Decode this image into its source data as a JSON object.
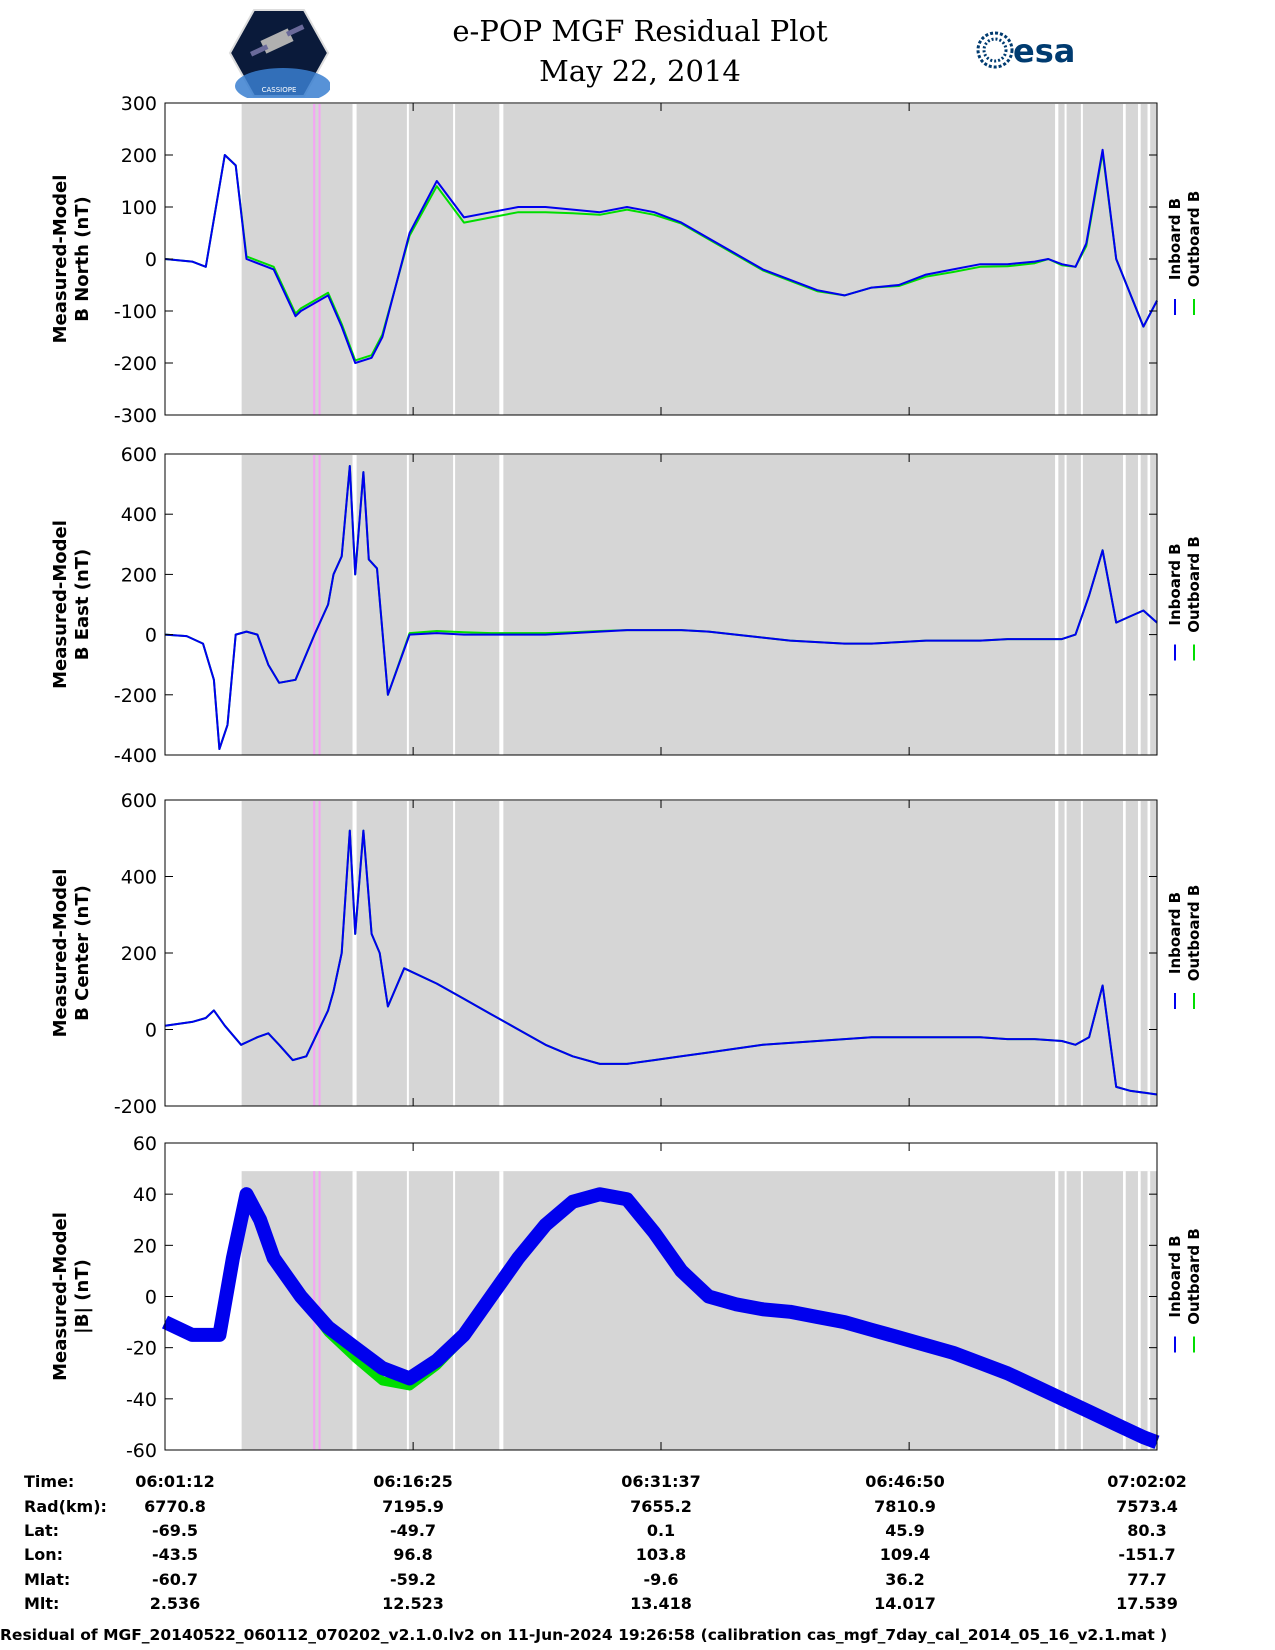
{
  "header": {
    "title": "e-POP MGF Residual Plot",
    "date": "May 22, 2014",
    "left_logo_text": "CASSIOPE",
    "right_logo_text": "esa"
  },
  "colors": {
    "inboard": "#0000ee",
    "outboard": "#00dd00",
    "shade": "#d6d6d6",
    "highlight": "#f4a6f4"
  },
  "chart_data": [
    {
      "type": "line",
      "ylabel_1": "Measured-Model",
      "ylabel_2": "B North (nT)",
      "ylim": [
        -300,
        300
      ],
      "yticks": [
        300,
        200,
        100,
        0,
        -100,
        -200,
        -300
      ],
      "legend": [
        "Inboard B",
        "Outboard B"
      ],
      "legend_placement": "right",
      "x_seconds": [
        0,
        100,
        150,
        220,
        260,
        300,
        400,
        480,
        500,
        600,
        650,
        700,
        760,
        800,
        900,
        1000,
        1100,
        1200,
        1300,
        1400,
        1500,
        1600,
        1700,
        1800,
        1900,
        2000,
        2100,
        2200,
        2300,
        2400,
        2500,
        2600,
        2700,
        2800,
        2900,
        3000,
        3100,
        3200,
        3250,
        3300,
        3350,
        3390,
        3450,
        3500,
        3600,
        3650
      ],
      "inboard": [
        0,
        -5,
        -15,
        200,
        180,
        0,
        -20,
        -110,
        -100,
        -70,
        -130,
        -200,
        -190,
        -150,
        50,
        150,
        80,
        90,
        100,
        100,
        95,
        90,
        100,
        90,
        70,
        40,
        10,
        -20,
        -40,
        -60,
        -70,
        -55,
        -50,
        -30,
        -20,
        -10,
        -10,
        -5,
        0,
        -10,
        -15,
        30,
        210,
        0,
        -130,
        -80
      ],
      "outboard": [
        0,
        -5,
        -15,
        200,
        180,
        5,
        -15,
        -105,
        -95,
        -65,
        -125,
        -195,
        -185,
        -145,
        45,
        140,
        70,
        80,
        90,
        90,
        88,
        85,
        95,
        85,
        68,
        38,
        8,
        -22,
        -42,
        -62,
        -70,
        -55,
        -52,
        -34,
        -25,
        -15,
        -14,
        -8,
        0,
        -12,
        -15,
        25,
        205,
        0,
        -130,
        -80
      ]
    },
    {
      "type": "line",
      "ylabel_1": "Measured-Model",
      "ylabel_2": "B East (nT)",
      "ylim": [
        -400,
        600
      ],
      "yticks": [
        600,
        400,
        200,
        0,
        -200,
        -400
      ],
      "legend": [
        "Inboard B",
        "Outboard B"
      ],
      "legend_placement": "right",
      "x_seconds": [
        0,
        80,
        140,
        180,
        200,
        230,
        260,
        300,
        340,
        380,
        420,
        480,
        550,
        600,
        620,
        650,
        680,
        700,
        730,
        750,
        780,
        820,
        900,
        1000,
        1100,
        1200,
        1300,
        1400,
        1500,
        1600,
        1700,
        1800,
        1900,
        2000,
        2100,
        2200,
        2300,
        2400,
        2500,
        2600,
        2700,
        2800,
        2900,
        3000,
        3100,
        3200,
        3300,
        3350,
        3400,
        3450,
        3500,
        3550,
        3600,
        3650
      ],
      "inboard": [
        0,
        -5,
        -30,
        -150,
        -380,
        -300,
        0,
        10,
        0,
        -100,
        -160,
        -150,
        0,
        100,
        200,
        260,
        560,
        200,
        540,
        250,
        220,
        -200,
        0,
        5,
        0,
        0,
        0,
        0,
        5,
        10,
        15,
        15,
        15,
        10,
        0,
        -10,
        -20,
        -25,
        -30,
        -30,
        -25,
        -20,
        -20,
        -20,
        -15,
        -15,
        -15,
        0,
        130,
        280,
        40,
        60,
        80,
        40
      ],
      "outboard": [
        0,
        -5,
        -30,
        -150,
        -380,
        -300,
        0,
        10,
        0,
        -100,
        -160,
        -150,
        0,
        100,
        200,
        260,
        560,
        200,
        540,
        250,
        220,
        -200,
        5,
        12,
        8,
        5,
        5,
        5,
        8,
        12,
        15,
        15,
        15,
        10,
        0,
        -10,
        -20,
        -25,
        -30,
        -30,
        -25,
        -20,
        -20,
        -20,
        -15,
        -15,
        -15,
        0,
        130,
        280,
        40,
        60,
        80,
        40
      ]
    },
    {
      "type": "line",
      "ylabel_1": "Measured-Model",
      "ylabel_2": "B Center (nT)",
      "ylim": [
        -200,
        600
      ],
      "yticks": [
        600,
        400,
        200,
        0,
        -200
      ],
      "legend": [
        "Inboard B",
        "Outboard B"
      ],
      "legend_placement": "right",
      "x_seconds": [
        0,
        100,
        150,
        180,
        220,
        280,
        310,
        340,
        380,
        420,
        470,
        520,
        560,
        600,
        620,
        650,
        680,
        700,
        730,
        760,
        790,
        820,
        880,
        1000,
        1100,
        1200,
        1300,
        1400,
        1500,
        1600,
        1700,
        1800,
        1900,
        2000,
        2100,
        2200,
        2300,
        2400,
        2500,
        2600,
        2700,
        2800,
        2900,
        3000,
        3100,
        3200,
        3300,
        3350,
        3400,
        3450,
        3500,
        3550,
        3650
      ],
      "inboard": [
        10,
        20,
        30,
        50,
        10,
        -40,
        -30,
        -20,
        -10,
        -40,
        -80,
        -70,
        -10,
        50,
        100,
        200,
        520,
        250,
        520,
        250,
        200,
        60,
        160,
        120,
        80,
        40,
        0,
        -40,
        -70,
        -90,
        -90,
        -80,
        -70,
        -60,
        -50,
        -40,
        -35,
        -30,
        -25,
        -20,
        -20,
        -20,
        -20,
        -20,
        -25,
        -25,
        -30,
        -40,
        -20,
        115,
        -150,
        -160,
        -170
      ],
      "outboard": [
        10,
        20,
        30,
        50,
        10,
        -40,
        -30,
        -20,
        -10,
        -40,
        -80,
        -70,
        -10,
        50,
        100,
        200,
        520,
        250,
        520,
        250,
        200,
        60,
        160,
        120,
        80,
        40,
        0,
        -40,
        -70,
        -90,
        -90,
        -80,
        -70,
        -60,
        -50,
        -40,
        -35,
        -30,
        -25,
        -20,
        -20,
        -20,
        -20,
        -20,
        -25,
        -25,
        -30,
        -40,
        -20,
        115,
        -150,
        -160,
        -170
      ]
    },
    {
      "type": "line",
      "ylabel_1": "Measured-Model",
      "ylabel_2": "|B| (nT)",
      "ylim": [
        -60,
        60
      ],
      "yticks": [
        60,
        40,
        20,
        0,
        -20,
        -40,
        -60
      ],
      "legend": [
        "Inboard B",
        "Outboard B"
      ],
      "legend_placement": "right",
      "x_seconds": [
        0,
        100,
        200,
        250,
        300,
        350,
        400,
        500,
        600,
        700,
        800,
        900,
        1000,
        1100,
        1200,
        1300,
        1400,
        1500,
        1600,
        1700,
        1800,
        1900,
        2000,
        2100,
        2200,
        2300,
        2400,
        2500,
        2600,
        2700,
        2800,
        2900,
        3000,
        3100,
        3200,
        3300,
        3400,
        3500,
        3600,
        3650
      ],
      "inboard": [
        -10,
        -15,
        -15,
        15,
        40,
        30,
        15,
        0,
        -12,
        -20,
        -28,
        -32,
        -25,
        -15,
        0,
        15,
        28,
        37,
        40,
        38,
        25,
        10,
        0,
        -3,
        -5,
        -6,
        -8,
        -10,
        -13,
        -16,
        -19,
        -22,
        -26,
        -30,
        -35,
        -40,
        -45,
        -50,
        -55,
        -57
      ],
      "outboard": [
        -10,
        -15,
        -15,
        15,
        40,
        30,
        15,
        0,
        -14,
        -24,
        -33,
        -35,
        -27,
        -16,
        0,
        15,
        28,
        37,
        40,
        38,
        25,
        10,
        0,
        -3,
        -5,
        -6,
        -8,
        -10,
        -13,
        -16,
        -19,
        -22,
        -26,
        -30,
        -35,
        -40,
        -45,
        -50,
        -55,
        -57
      ]
    }
  ],
  "time_axis": {
    "tick_labels": [
      "06:01:12",
      "06:16:25",
      "06:31:37",
      "06:46:50",
      "07:02:02"
    ],
    "tick_seconds": [
      0,
      913,
      1825,
      2738,
      3650
    ]
  },
  "orbit_info": {
    "row_labels": [
      "Time:",
      "Rad(km):",
      "Lat:",
      "Lon:",
      "Mlat:",
      "Mlt:"
    ],
    "columns": [
      [
        "06:01:12",
        "6770.8",
        "-69.5",
        "-43.5",
        "-60.7",
        "2.536"
      ],
      [
        "06:16:25",
        "7195.9",
        "-49.7",
        "96.8",
        "-59.2",
        "12.523"
      ],
      [
        "06:31:37",
        "7655.2",
        "0.1",
        "103.8",
        "-9.6",
        "13.418"
      ],
      [
        "06:46:50",
        "7810.9",
        "45.9",
        "109.4",
        "36.2",
        "14.017"
      ],
      [
        "07:02:02",
        "7573.4",
        "80.3",
        "-151.7",
        "77.7",
        "17.539"
      ]
    ]
  },
  "footer": "Residual of MGF_20140522_060112_070202_v2.1.0.lv2 on 11-Jun-2024 19:26:58 (calibration cas_mgf_7day_cal_2014_05_16_v2.1.mat )"
}
